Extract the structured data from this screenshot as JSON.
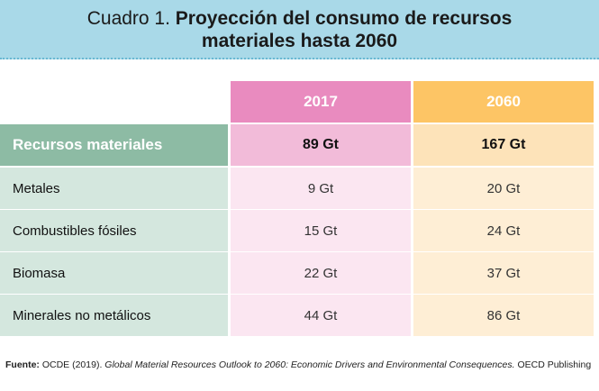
{
  "title": {
    "prefix": "Cuadro 1.",
    "line1": "Proyección del consumo de recursos",
    "line2": "materiales hasta 2060"
  },
  "table": {
    "headers": [
      "",
      "2017",
      "2060"
    ],
    "total_row": {
      "label": "Recursos materiales",
      "v2017": "89 Gt",
      "v2060": "167 Gt"
    },
    "rows": [
      {
        "label": "Metales",
        "v2017": "9 Gt",
        "v2060": "20 Gt"
      },
      {
        "label": "Combustibles fósiles",
        "v2017": "15 Gt",
        "v2060": "24 Gt"
      },
      {
        "label": "Biomasa",
        "v2017": "22 Gt",
        "v2060": "37 Gt"
      },
      {
        "label": "Minerales no metálicos",
        "v2017": "44 Gt",
        "v2060": "86 Gt"
      }
    ]
  },
  "source": {
    "label": "Fuente:",
    "text": "OCDE (2019).",
    "title": "Global Material Resources Outlook to 2060: Economic Drivers and Environmental Consequences.",
    "publisher": "OECD Publishing"
  }
}
